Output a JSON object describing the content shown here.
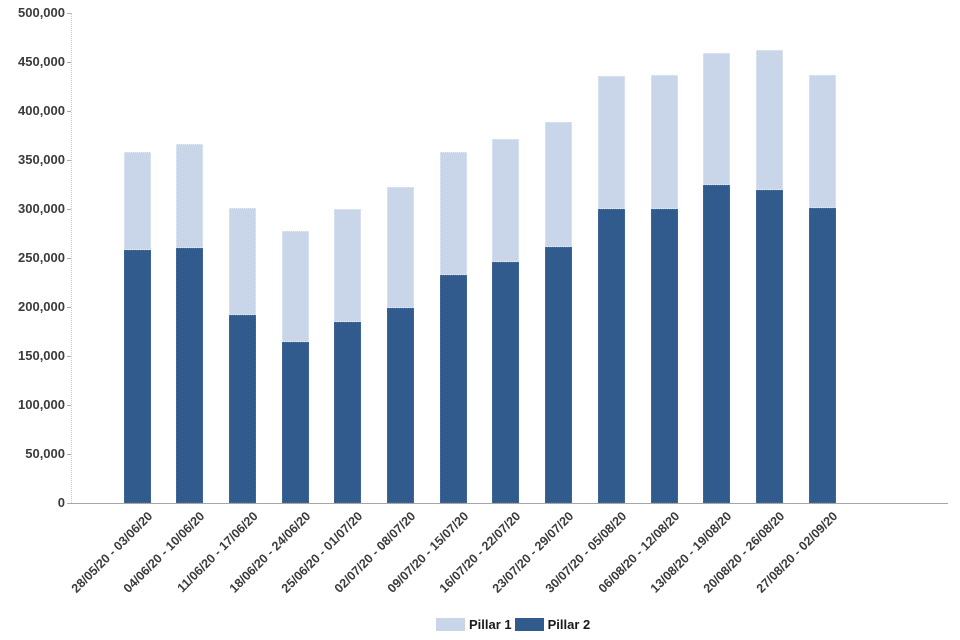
{
  "chart_data": {
    "type": "bar",
    "stacked": true,
    "title": "",
    "xlabel": "",
    "ylabel": "",
    "grid": "none",
    "legend_position": "bottom",
    "ylim": [
      0,
      500000
    ],
    "ytick_step": 50000,
    "ytick_labels": [
      "0",
      "50,000",
      "100,000",
      "150,000",
      "200,000",
      "250,000",
      "300,000",
      "350,000",
      "400,000",
      "450,000",
      "500,000"
    ],
    "categories": [
      "28/05/20 - 03/06/20",
      "04/06/20 - 10/06/20",
      "11/06/20 - 17/06/20",
      "18/06/20 - 24/06/20",
      "25/06/20 - 01/07/20",
      "02/07/20 - 08/07/20",
      "09/07/20 - 15/07/20",
      "16/07/20 - 22/07/20",
      "23/07/20 - 29/07/20",
      "30/07/20 - 05/08/20",
      "06/08/20 - 12/08/20",
      "13/08/20 - 19/08/20",
      "20/08/20 - 26/08/20",
      "27/08/20 - 02/09/20"
    ],
    "series": [
      {
        "name": "Pillar 1",
        "color": "#c9d6e9",
        "stack_position": "top",
        "values": [
          100000,
          106000,
          109000,
          114000,
          115000,
          123000,
          125000,
          125000,
          128000,
          136000,
          137000,
          135000,
          143000,
          136000
        ]
      },
      {
        "name": "Pillar 2",
        "color": "#315b8c",
        "stack_position": "bottom",
        "values": [
          258000,
          260000,
          192000,
          164000,
          185000,
          199000,
          233000,
          246000,
          261000,
          300000,
          300000,
          324000,
          319000,
          301000
        ]
      }
    ]
  }
}
